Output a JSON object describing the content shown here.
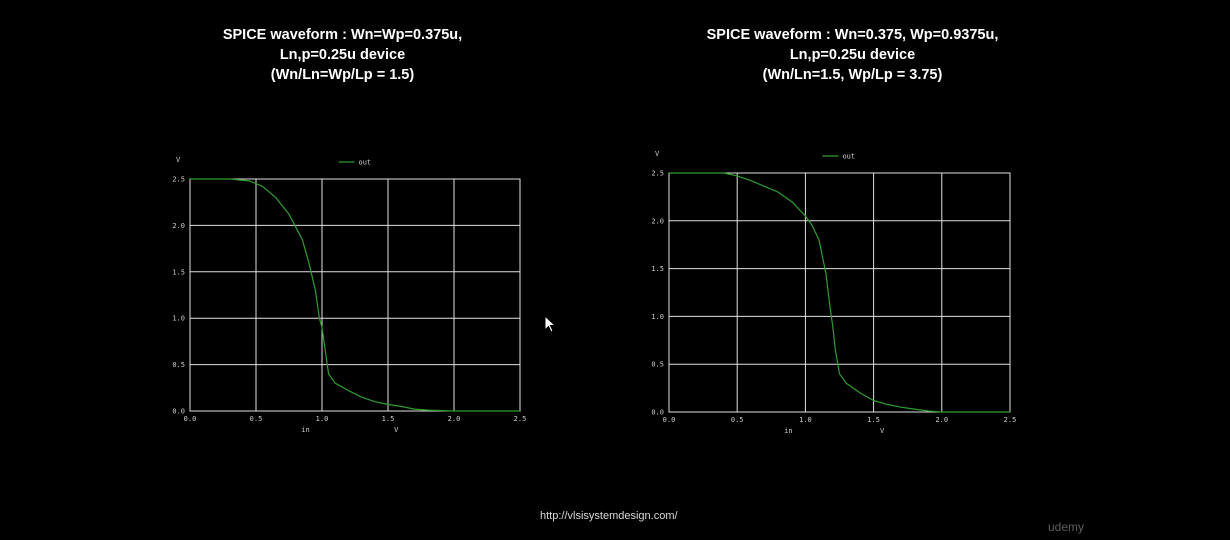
{
  "colors": {
    "background": "#000000",
    "grid": "#e0e0e0",
    "trace": "#2f9d2f",
    "text": "#ffffff"
  },
  "footer": {
    "url": "http://vlsisystemdesign.com/",
    "watermark": "udemy"
  },
  "chart_data": [
    {
      "type": "line",
      "title_lines": [
        "SPICE waveform : Wn=Wp=0.375u,",
        "Ln,p=0.25u device",
        "(Wn/Ln=Wp/Lp = 1.5)"
      ],
      "ylabel": "V",
      "xlabel": "in",
      "xunit": "V",
      "legend": "out",
      "legend_position": "top-center",
      "grid": true,
      "xlim": [
        0,
        2.5
      ],
      "ylim": [
        0,
        2.5
      ],
      "xticks": [
        "0.0",
        "0.5",
        "1.0",
        "1.5",
        "2.0",
        "2.5"
      ],
      "yticks": [
        "0.0",
        "0.5",
        "1.0",
        "1.5",
        "2.0",
        "2.5"
      ],
      "series": [
        {
          "name": "out",
          "x": [
            0,
            0.3,
            0.45,
            0.55,
            0.65,
            0.75,
            0.85,
            0.9,
            0.95,
            0.98,
            1.0,
            1.02,
            1.05,
            1.1,
            1.2,
            1.3,
            1.4,
            1.5,
            1.6,
            1.7,
            1.8,
            2.0,
            2.5
          ],
          "y": [
            2.5,
            2.5,
            2.48,
            2.42,
            2.3,
            2.12,
            1.85,
            1.6,
            1.3,
            1.0,
            0.9,
            0.7,
            0.4,
            0.3,
            0.22,
            0.15,
            0.1,
            0.07,
            0.05,
            0.02,
            0.01,
            0.0,
            0.0
          ]
        }
      ]
    },
    {
      "type": "line",
      "title_lines": [
        "SPICE waveform : Wn=0.375, Wp=0.9375u,",
        "Ln,p=0.25u device",
        "(Wn/Ln=1.5, Wp/Lp = 3.75)"
      ],
      "ylabel": "V",
      "xlabel": "in",
      "xunit": "V",
      "legend": "out",
      "legend_position": "top-center",
      "grid": true,
      "xlim": [
        0,
        2.5
      ],
      "ylim": [
        0,
        2.5
      ],
      "xticks": [
        "0.0",
        "0.5",
        "1.0",
        "1.5",
        "2.0",
        "2.5"
      ],
      "yticks": [
        "0.0",
        "0.5",
        "1.0",
        "1.5",
        "2.0",
        "2.5"
      ],
      "series": [
        {
          "name": "out",
          "x": [
            0,
            0.4,
            0.5,
            0.6,
            0.7,
            0.8,
            0.9,
            1.0,
            1.05,
            1.1,
            1.15,
            1.18,
            1.2,
            1.22,
            1.25,
            1.3,
            1.4,
            1.5,
            1.6,
            1.7,
            1.8,
            1.9,
            2.0,
            2.5
          ],
          "y": [
            2.5,
            2.5,
            2.47,
            2.42,
            2.36,
            2.3,
            2.2,
            2.05,
            1.95,
            1.8,
            1.45,
            1.1,
            0.9,
            0.65,
            0.4,
            0.3,
            0.2,
            0.12,
            0.08,
            0.05,
            0.03,
            0.01,
            0.0,
            0.0
          ]
        }
      ]
    }
  ]
}
